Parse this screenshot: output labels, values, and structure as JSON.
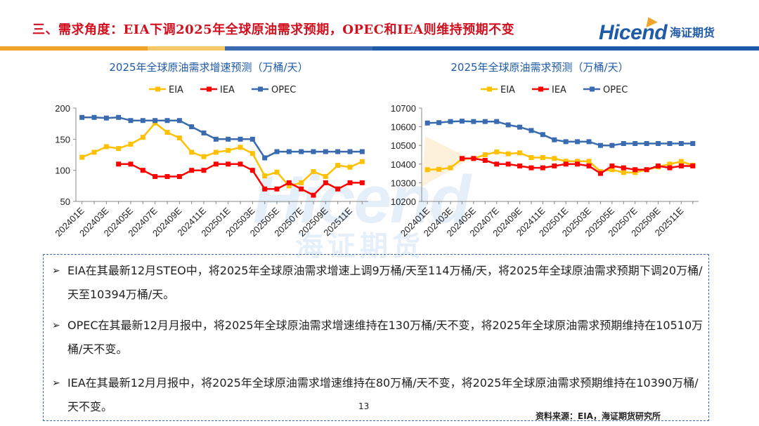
{
  "header": {
    "title": "三、需求角度：EIA下调2025年全球原油需求预期，OPEC和IEA则维持预期不变",
    "logo_text": "Hicend",
    "logo_cn": "海证期货"
  },
  "watermark": {
    "text": "Hicend",
    "cn": "海证期货"
  },
  "colors": {
    "EIA": "#ffc000",
    "IEA": "#ff0000",
    "OPEC": "#3a6bb0",
    "title": "#d0101f",
    "accent": "#1f5aa8"
  },
  "chart_data": [
    {
      "type": "line",
      "title": "2025年全球原油需求增速预测（万桶/天）",
      "categories": [
        "202401E",
        "202402E",
        "202403E",
        "202404E",
        "202405E",
        "202406E",
        "202407E",
        "202408E",
        "202409E",
        "202410E",
        "202411E",
        "202412E",
        "202501E",
        "202502E",
        "202503E",
        "202504E",
        "202505E",
        "202506E",
        "202507E",
        "202508E",
        "202509E",
        "202510E",
        "202511E",
        "202512E"
      ],
      "xtick_labels": [
        "202401E",
        "202403E",
        "202405E",
        "202407E",
        "202409E",
        "202411E",
        "202501E",
        "202503E",
        "202505E",
        "202507E",
        "202509E",
        "202511E"
      ],
      "ylim": [
        50,
        200
      ],
      "yticks": [
        50,
        100,
        150,
        200
      ],
      "series": [
        {
          "name": "EIA",
          "values": [
            121,
            129,
            138,
            135,
            142,
            153,
            176,
            161,
            152,
            129,
            122,
            129,
            132,
            137,
            127,
            91,
            97,
            75,
            80,
            98,
            90,
            108,
            105,
            114
          ]
        },
        {
          "name": "IEA",
          "values": [
            null,
            null,
            null,
            110,
            110,
            100,
            90,
            90,
            90,
            100,
            100,
            110,
            110,
            110,
            100,
            70,
            70,
            80,
            70,
            60,
            80,
            70,
            80,
            80
          ]
        },
        {
          "name": "OPEC",
          "values": [
            185,
            185,
            184,
            185,
            180,
            180,
            180,
            180,
            180,
            170,
            160,
            150,
            150,
            150,
            150,
            120,
            130,
            130,
            130,
            130,
            130,
            130,
            130,
            130
          ]
        }
      ]
    },
    {
      "type": "line",
      "title": "2025年全球原油需求预测（万桶/天）",
      "categories": [
        "202401E",
        "202402E",
        "202403E",
        "202404E",
        "202405E",
        "202406E",
        "202407E",
        "202408E",
        "202409E",
        "202410E",
        "202411E",
        "202412E",
        "202501E",
        "202502E",
        "202503E",
        "202504E",
        "202505E",
        "202506E",
        "202507E",
        "202508E",
        "202509E",
        "202510E",
        "202511E",
        "202512E"
      ],
      "xtick_labels": [
        "202401E",
        "202403E",
        "202405E",
        "202407E",
        "202409E",
        "202411E",
        "202501E",
        "202503E",
        "202505E",
        "202507E",
        "202509E",
        "202511E"
      ],
      "ylim": [
        10200,
        10700
      ],
      "yticks": [
        10200,
        10300,
        10400,
        10500,
        10600,
        10700
      ],
      "series": [
        {
          "name": "EIA",
          "values": [
            10370,
            10372,
            10380,
            10428,
            10430,
            10450,
            10465,
            10455,
            10460,
            10435,
            10435,
            10430,
            10415,
            10415,
            10415,
            10360,
            10370,
            10355,
            10355,
            10370,
            10385,
            10400,
            10414,
            10394
          ]
        },
        {
          "name": "IEA",
          "values": [
            null,
            null,
            null,
            10430,
            10430,
            10420,
            10400,
            10400,
            10390,
            10380,
            10380,
            10390,
            10400,
            10400,
            10390,
            10350,
            10390,
            10380,
            10370,
            10370,
            10390,
            10380,
            10390,
            10390
          ]
        },
        {
          "name": "OPEC",
          "values": [
            10620,
            10622,
            10628,
            10630,
            10628,
            10628,
            10628,
            10610,
            10598,
            10580,
            10558,
            10530,
            10520,
            10520,
            10520,
            10500,
            10500,
            10510,
            10510,
            10510,
            10510,
            10510,
            10510,
            10510
          ]
        }
      ]
    }
  ],
  "bullets": [
    "EIA在其最新12月STEO中，将2025年全球原油需求增速上调9万桶/天至114万桶/天，将2025年全球原油需求预期下调20万桶/天至10394万桶/天。",
    "OPEC在其最新12月月报中，将2025年全球原油需求增速维持在130万桶/天不变，将2025年全球原油需求预期维持在10510万桶/天不变。",
    "IEA在其最新12月月报中，将2025年全球原油需求增速维持在80万桶/天不变，将2025年全球原油需求预期维持在10390万桶/天不变。"
  ],
  "bullet_marker": "➢",
  "footer": {
    "page_number": "13",
    "source": "资料来源：EIA，海证期货研究所"
  }
}
